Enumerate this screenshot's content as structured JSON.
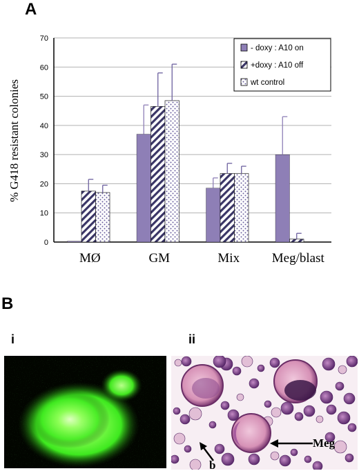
{
  "panels": {
    "a_label": "A",
    "b_label": "B",
    "sub_i_label": "i",
    "sub_ii_label": "ii"
  },
  "micrograph_ii": {
    "annotation_meg": "Meg",
    "annotation_b": "b"
  },
  "colors": {
    "purple": "#8e7fb6",
    "hatch_ink": "#3a3566",
    "dots_ink": "#6b5f9e",
    "grid": "#b0b0b0",
    "fluor_green": "#4cff2a"
  },
  "chart_data": {
    "type": "bar",
    "ylabel": "% G418 resistant colonies",
    "xlabel": "",
    "ylim": [
      0,
      70
    ],
    "yticks": [
      0,
      10,
      20,
      30,
      40,
      50,
      60,
      70
    ],
    "grid": true,
    "legend_position": "top-right",
    "categories": [
      "MØ",
      "GM",
      "Mix",
      "Meg/blast"
    ],
    "series": [
      {
        "name": "- doxy : A10 on",
        "pattern": "solid",
        "values": [
          0.3,
          37,
          18.5,
          30
        ],
        "errors": [
          0,
          10,
          3.5,
          13
        ]
      },
      {
        "name": "+doxy : A10 off",
        "pattern": "hatch",
        "values": [
          17.5,
          46.5,
          23.5,
          1
        ],
        "errors": [
          4,
          11.5,
          3.5,
          2
        ]
      },
      {
        "name": "wt control",
        "pattern": "dots",
        "values": [
          17,
          48.5,
          23.5,
          0
        ],
        "errors": [
          2.5,
          12.5,
          2.5,
          0
        ]
      }
    ]
  }
}
